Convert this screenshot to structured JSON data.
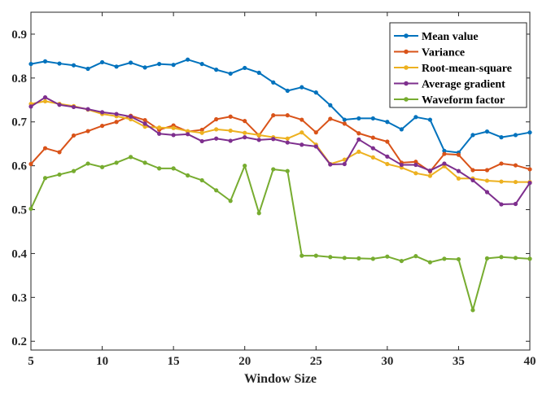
{
  "chart_data": {
    "type": "line",
    "title": "",
    "xlabel": "Window Size",
    "ylabel": "",
    "xlim": [
      5,
      40
    ],
    "ylim": [
      0.18,
      0.95
    ],
    "xticks": [
      5,
      10,
      15,
      20,
      25,
      30,
      35,
      40
    ],
    "yticks": [
      0.2,
      0.3,
      0.4,
      0.5,
      0.6,
      0.7,
      0.8,
      0.9
    ],
    "xtick_labels": [
      "5",
      "10",
      "15",
      "20",
      "25",
      "30",
      "35",
      "40"
    ],
    "ytick_labels": [
      "0.2",
      "0.3",
      "0.4",
      "0.5",
      "0.6",
      "0.7",
      "0.8",
      "0.9"
    ],
    "grid": false,
    "legend_position": "top-right",
    "x": [
      5,
      6,
      7,
      8,
      9,
      10,
      11,
      12,
      13,
      14,
      15,
      16,
      17,
      18,
      19,
      20,
      21,
      22,
      23,
      24,
      25,
      26,
      27,
      28,
      29,
      30,
      31,
      32,
      33,
      34,
      35,
      36,
      37,
      38,
      39,
      40
    ],
    "series": [
      {
        "name": "Mean value",
        "color": "#0072BD",
        "values": [
          0.832,
          0.838,
          0.833,
          0.829,
          0.821,
          0.836,
          0.826,
          0.835,
          0.824,
          0.832,
          0.83,
          0.842,
          0.832,
          0.819,
          0.81,
          0.823,
          0.812,
          0.79,
          0.771,
          0.779,
          0.767,
          0.738,
          0.705,
          0.708,
          0.708,
          0.7,
          0.683,
          0.711,
          0.705,
          0.634,
          0.63,
          0.67,
          0.678,
          0.665,
          0.67,
          0.676
        ]
      },
      {
        "name": "Variance",
        "color": "#D95319",
        "values": [
          0.604,
          0.64,
          0.631,
          0.669,
          0.679,
          0.691,
          0.7,
          0.714,
          0.704,
          0.682,
          0.692,
          0.678,
          0.682,
          0.706,
          0.712,
          0.702,
          0.669,
          0.715,
          0.715,
          0.705,
          0.676,
          0.707,
          0.696,
          0.674,
          0.664,
          0.655,
          0.607,
          0.609,
          0.587,
          0.627,
          0.625,
          0.59,
          0.59,
          0.605,
          0.601,
          0.592
        ]
      },
      {
        "name": "Root-mean-square",
        "color": "#EDB120",
        "values": [
          0.741,
          0.747,
          0.741,
          0.736,
          0.728,
          0.718,
          0.713,
          0.706,
          0.689,
          0.687,
          0.686,
          0.679,
          0.675,
          0.683,
          0.68,
          0.675,
          0.67,
          0.665,
          0.662,
          0.676,
          0.648,
          0.604,
          0.614,
          0.632,
          0.619,
          0.604,
          0.596,
          0.583,
          0.577,
          0.599,
          0.571,
          0.571,
          0.566,
          0.564,
          0.563,
          0.563
        ]
      },
      {
        "name": "Average gradient",
        "color": "#7E2F8E",
        "values": [
          0.735,
          0.756,
          0.739,
          0.734,
          0.729,
          0.722,
          0.718,
          0.712,
          0.696,
          0.673,
          0.67,
          0.672,
          0.656,
          0.662,
          0.657,
          0.665,
          0.659,
          0.661,
          0.653,
          0.648,
          0.644,
          0.603,
          0.604,
          0.66,
          0.64,
          0.621,
          0.602,
          0.602,
          0.589,
          0.605,
          0.588,
          0.567,
          0.54,
          0.512,
          0.513,
          0.561
        ]
      },
      {
        "name": "Waveform factor",
        "color": "#77AC30",
        "values": [
          0.502,
          0.572,
          0.58,
          0.588,
          0.605,
          0.597,
          0.607,
          0.62,
          0.607,
          0.594,
          0.594,
          0.578,
          0.567,
          0.544,
          0.52,
          0.6,
          0.492,
          0.592,
          0.588,
          0.395,
          0.395,
          0.392,
          0.39,
          0.389,
          0.388,
          0.393,
          0.383,
          0.394,
          0.38,
          0.388,
          0.387,
          0.271,
          0.389,
          0.392,
          0.39,
          0.388
        ]
      }
    ]
  }
}
